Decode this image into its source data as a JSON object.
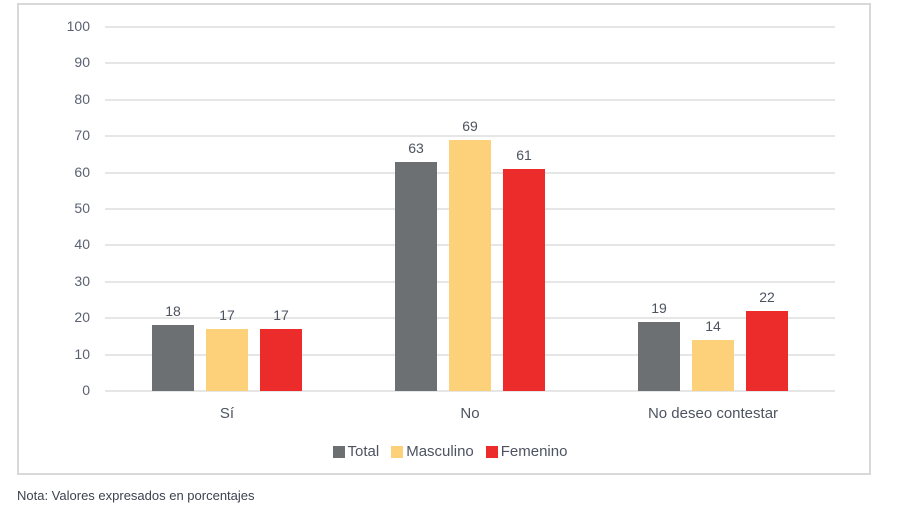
{
  "chart_data": {
    "type": "bar",
    "title": "",
    "xlabel": "",
    "ylabel": "",
    "ylim": [
      0,
      100
    ],
    "yticks": [
      0,
      10,
      20,
      30,
      40,
      50,
      60,
      70,
      80,
      90,
      100
    ],
    "grid": true,
    "legend_position": "bottom",
    "categories": [
      "Sí",
      "No",
      "No deseo contestar"
    ],
    "series": [
      {
        "name": "Total",
        "color": "#6d7072",
        "values": [
          18,
          63,
          19
        ]
      },
      {
        "name": "Masculino",
        "color": "#fdd07a",
        "values": [
          17,
          69,
          14
        ]
      },
      {
        "name": "Femenino",
        "color": "#ec2b2b",
        "values": [
          17,
          61,
          22
        ]
      }
    ]
  },
  "note": "Nota: Valores expresados en porcentajes"
}
